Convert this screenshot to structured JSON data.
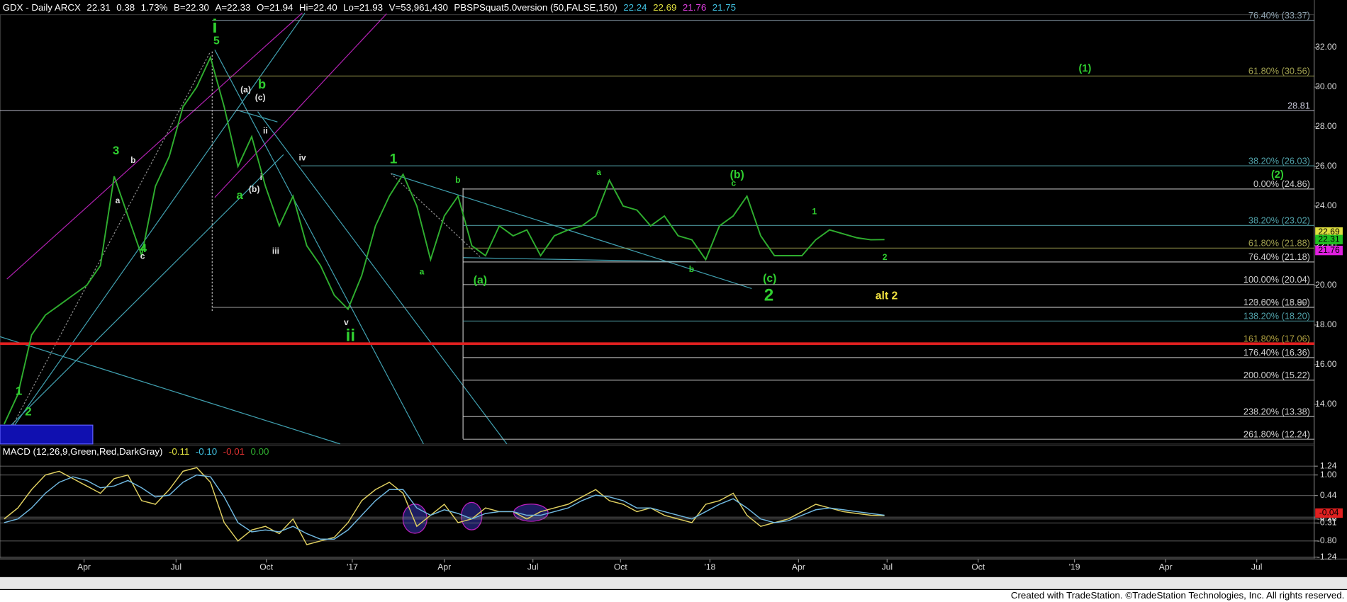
{
  "chart_data": [
    {
      "type": "line",
      "header": [
        {
          "text": "GDX - Daily  ARCX",
          "color": "#ffffff"
        },
        {
          "text": "22.31",
          "color": "#ffffff"
        },
        {
          "text": "0.38",
          "color": "#ffffff"
        },
        {
          "text": "1.73%",
          "color": "#ffffff"
        },
        {
          "text": "B=22.30",
          "color": "#ffffff"
        },
        {
          "text": "A=22.33",
          "color": "#ffffff"
        },
        {
          "text": "O=21.94",
          "color": "#ffffff"
        },
        {
          "text": "Hi=22.40",
          "color": "#ffffff"
        },
        {
          "text": "Lo=21.93",
          "color": "#ffffff"
        },
        {
          "text": "V=53,961,430",
          "color": "#ffffff"
        },
        {
          "text": "PBSPSquat5.0version (50,FALSE,150)",
          "color": "#ffffff"
        },
        {
          "text": "22.24",
          "color": "#40c0e0"
        },
        {
          "text": "22.69",
          "color": "#e0e040"
        },
        {
          "text": "21.76",
          "color": "#e040e0"
        },
        {
          "text": "21.75",
          "color": "#40c0e0"
        }
      ],
      "series": [
        {
          "name": "GDX",
          "color": "#2fae2f",
          "values": [
            13.0,
            14.5,
            17.5,
            18.5,
            19.0,
            19.5,
            20.0,
            21.0,
            25.5,
            23.5,
            21.5,
            25.0,
            26.5,
            29.0,
            30.0,
            31.5,
            29.0,
            26.0,
            27.5,
            25.0,
            23.0,
            24.5,
            22.0,
            21.0,
            19.5,
            18.8,
            20.5,
            23.0,
            24.5,
            25.6,
            24.0,
            21.3,
            23.5,
            24.5,
            22.0,
            21.5,
            23.0,
            22.5,
            22.8,
            21.5,
            22.5,
            22.8,
            23.0,
            23.5,
            25.3,
            24.0,
            23.8,
            23.0,
            23.5,
            22.5,
            22.3,
            21.3,
            23.0,
            23.5,
            24.5,
            22.5,
            21.5,
            21.5,
            21.5,
            22.3,
            22.8,
            22.6,
            22.4,
            22.3,
            22.31
          ]
        }
      ],
      "xlim": [
        -0.3,
        94
      ],
      "xticks": [
        {
          "value": 5.81,
          "label": "Apr"
        },
        {
          "value": 12.5,
          "label": "Jul"
        },
        {
          "value": 19.06,
          "label": "Oct"
        },
        {
          "value": 25.31,
          "label": "'17"
        },
        {
          "value": 32,
          "label": "Apr"
        },
        {
          "value": 38.44,
          "label": "Jul"
        },
        {
          "value": 44.81,
          "label": "Oct"
        },
        {
          "value": 51.31,
          "label": "'18"
        },
        {
          "value": 57.75,
          "label": "Apr"
        },
        {
          "value": 64.19,
          "label": "Jul"
        },
        {
          "value": 70.81,
          "label": "Oct"
        },
        {
          "value": 77.81,
          "label": "'19"
        },
        {
          "value": 84.44,
          "label": "Apr"
        },
        {
          "value": 91.06,
          "label": "Jul"
        }
      ],
      "ylim": [
        12,
        33.7
      ],
      "yticks": [
        {
          "value": 14,
          "label": "14.00"
        },
        {
          "value": 16,
          "label": "16.00"
        },
        {
          "value": 18,
          "label": "18.00"
        },
        {
          "value": 20,
          "label": "20.00"
        },
        {
          "value": 22,
          "label": "22.00"
        },
        {
          "value": 24,
          "label": "24.00"
        },
        {
          "value": 26,
          "label": "26.00"
        },
        {
          "value": 28,
          "label": "28.00"
        },
        {
          "value": 30,
          "label": "30.00"
        },
        {
          "value": 32,
          "label": "32.00"
        }
      ],
      "last_markers": [
        {
          "value": 22.69,
          "color": "#e0e040"
        },
        {
          "value": 22.31,
          "color": "#20c020"
        },
        {
          "value": 21.76,
          "color": "#e020e0"
        }
      ],
      "levels": [
        {
          "value": 33.37,
          "label": "76.40% (33.37)",
          "color": "#8fa3b0"
        },
        {
          "value": 30.56,
          "label": "61.80% (30.56)",
          "color": "#a0a050"
        },
        {
          "value": 28.81,
          "label": "28.81",
          "color": "#c8c8d8"
        },
        {
          "value": 26.03,
          "label": "38.20% (26.03)",
          "color": "#50a0a8"
        },
        {
          "value": 24.86,
          "label": "0.00% (24.86)",
          "color": "#d0d0d0"
        },
        {
          "value": 23.02,
          "label": "38.20% (23.02)",
          "color": "#50a0a8"
        },
        {
          "value": 21.88,
          "label": "61.80% (21.88)",
          "color": "#a0a050"
        },
        {
          "value": 21.18,
          "label": "76.40% (21.18)",
          "color": "#d0d0d0"
        },
        {
          "value": 20.04,
          "label": "100.00% (20.04)",
          "color": "#d0d0d0"
        },
        {
          "value": 18.9,
          "label": "123.60% (18.90)",
          "color": "#d0d0d0"
        },
        {
          "value": 18.89,
          "label": "0.00% (18.89)",
          "color": "#a0a0a0"
        },
        {
          "value": 18.2,
          "label": "138.20% (18.20)",
          "color": "#50a0a8"
        },
        {
          "value": 17.06,
          "label": "161.80% (17.06)",
          "color": "#e02020"
        },
        {
          "value": 16.36,
          "label": "176.40% (16.36)",
          "color": "#d0d0d0"
        },
        {
          "value": 15.22,
          "label": "200.00% (15.22)",
          "color": "#d0d0d0"
        },
        {
          "value": 13.38,
          "label": "238.20% (13.38)",
          "color": "#d0d0d0"
        },
        {
          "value": 12.24,
          "label": "261.80% (12.24)",
          "color": "#d0d0d0"
        }
      ],
      "annotations": [
        {
          "text": "i",
          "color": "#30d030"
        },
        {
          "text": "5",
          "color": "#30d030"
        },
        {
          "text": "3",
          "color": "#30d030"
        },
        {
          "text": "4",
          "color": "#30d030"
        },
        {
          "text": "1",
          "color": "#30d030"
        },
        {
          "text": "2",
          "color": "#30d030"
        },
        {
          "text": "a",
          "color": "#30d030"
        },
        {
          "text": "b",
          "color": "#30d030"
        },
        {
          "text": "1",
          "color": "#30d030"
        },
        {
          "text": "ii",
          "color": "#30d030"
        },
        {
          "text": "2",
          "color": "#30d030"
        },
        {
          "text": "(b)",
          "color": "#30d030"
        },
        {
          "text": "(a)",
          "color": "#30d030"
        },
        {
          "text": "(c)",
          "color": "#30d030"
        },
        {
          "text": "(1)",
          "color": "#30d030"
        },
        {
          "text": "(2)",
          "color": "#30d030"
        },
        {
          "text": "alt 2",
          "color": "#f0e040"
        },
        {
          "text": "b",
          "color": "#e0e0e0"
        },
        {
          "text": "a",
          "color": "#e0e0e0"
        },
        {
          "text": "c",
          "color": "#e0e0e0"
        },
        {
          "text": "(a)",
          "color": "#e0e0e0"
        },
        {
          "text": "(c)",
          "color": "#e0e0e0"
        },
        {
          "text": "ii",
          "color": "#e0e0e0"
        },
        {
          "text": "i",
          "color": "#e0e0e0"
        },
        {
          "text": "(b)",
          "color": "#e0e0e0"
        },
        {
          "text": "iv",
          "color": "#e0e0e0"
        },
        {
          "text": "iii",
          "color": "#e0e0e0"
        },
        {
          "text": "v",
          "color": "#e0e0e0"
        },
        {
          "text": "a",
          "color": "#30d030"
        },
        {
          "text": "b",
          "color": "#30d030"
        },
        {
          "text": "a",
          "color": "#30d030"
        },
        {
          "text": "b",
          "color": "#30d030"
        },
        {
          "text": "c",
          "color": "#30d030"
        },
        {
          "text": "1",
          "color": "#30d030"
        },
        {
          "text": "2",
          "color": "#30d030"
        }
      ]
    },
    {
      "type": "line",
      "header": [
        {
          "text": "MACD (12,26,9,Green,Red,DarkGray)",
          "color": "#ffffff"
        },
        {
          "text": "-0.11",
          "color": "#e0e040"
        },
        {
          "text": "-0.10",
          "color": "#40c0e0"
        },
        {
          "text": "-0.01",
          "color": "#e03030"
        },
        {
          "text": "0.00",
          "color": "#30b030"
        }
      ],
      "series": [
        {
          "name": "MACD",
          "color": "#e0d060",
          "values": [
            -0.2,
            0.1,
            0.6,
            1.0,
            1.1,
            0.9,
            0.7,
            0.5,
            0.9,
            1.0,
            0.3,
            0.2,
            0.6,
            1.1,
            1.2,
            0.8,
            -0.3,
            -0.8,
            -0.5,
            -0.4,
            -0.6,
            -0.2,
            -0.9,
            -0.8,
            -0.7,
            -0.3,
            0.3,
            0.6,
            0.8,
            0.5,
            -0.4,
            -0.1,
            0.2,
            -0.3,
            -0.2,
            0.1,
            0.0,
            0.0,
            -0.2,
            0.0,
            0.1,
            0.2,
            0.4,
            0.6,
            0.3,
            0.2,
            0.0,
            0.1,
            -0.1,
            -0.2,
            -0.3,
            0.2,
            0.3,
            0.5,
            -0.1,
            -0.4,
            -0.3,
            -0.2,
            0.0,
            0.2,
            0.1,
            0.0,
            -0.05,
            -0.1,
            -0.11
          ]
        },
        {
          "name": "Signal",
          "color": "#70b8e0",
          "values": [
            -0.3,
            -0.2,
            0.1,
            0.5,
            0.8,
            0.95,
            0.85,
            0.65,
            0.7,
            0.85,
            0.65,
            0.4,
            0.45,
            0.8,
            1.0,
            0.95,
            0.4,
            -0.3,
            -0.55,
            -0.5,
            -0.55,
            -0.4,
            -0.6,
            -0.75,
            -0.75,
            -0.5,
            -0.1,
            0.3,
            0.6,
            0.6,
            0.1,
            -0.1,
            0.05,
            -0.05,
            -0.2,
            -0.05,
            0.0,
            0.0,
            -0.1,
            -0.1,
            0.0,
            0.1,
            0.3,
            0.45,
            0.4,
            0.3,
            0.1,
            0.1,
            0.0,
            -0.1,
            -0.2,
            0.0,
            0.2,
            0.35,
            0.1,
            -0.2,
            -0.3,
            -0.25,
            -0.1,
            0.05,
            0.1,
            0.05,
            0.0,
            -0.05,
            -0.1
          ]
        }
      ],
      "ylim": [
        -1.27,
        1.47
      ],
      "yticks": [
        1.24,
        {
          "value": 1,
          "label": "1.00"
        },
        0.44,
        -0.15,
        {
          "value": -0.2,
          "label": "-0.20"
        },
        -0.31,
        {
          "value": -0.8,
          "label": "-0.80"
        },
        -1.24
      ],
      "last_markers": [
        {
          "value": -0.04,
          "color": "#e02020"
        }
      ]
    }
  ],
  "footer": "Created with TradeStation. ©TradeStation Technologies, Inc. All rights reserved."
}
